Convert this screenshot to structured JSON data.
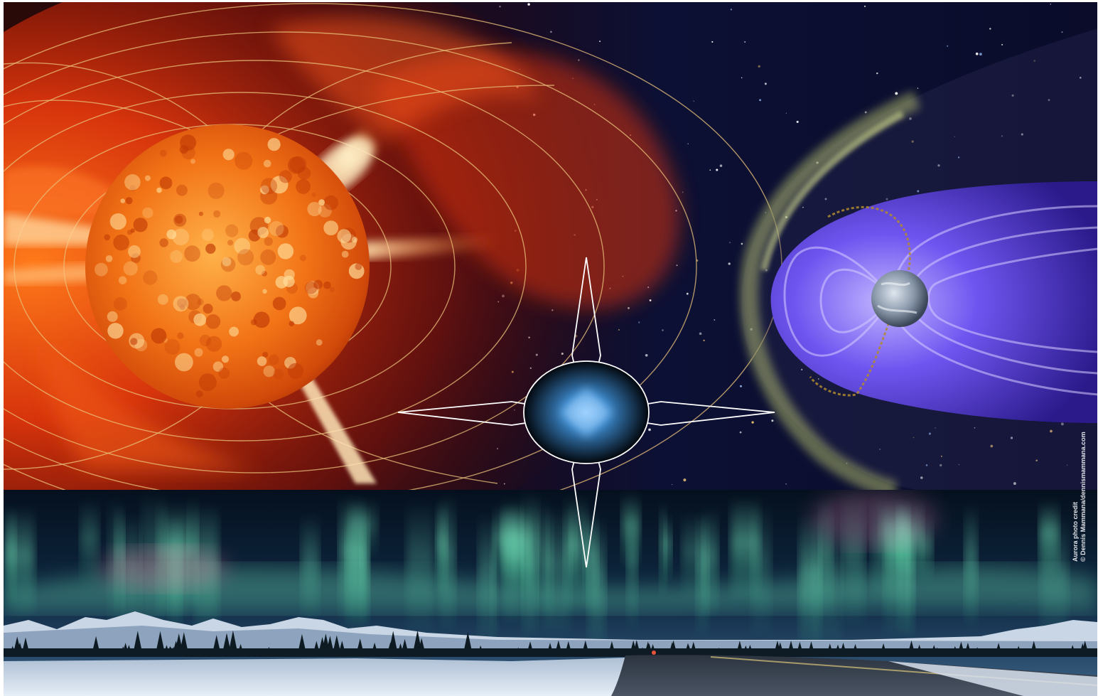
{
  "image": {
    "panels": [
      "solar-corona-panel",
      "magnetosphere-panel",
      "aurora-landscape-panel"
    ],
    "emblem": "four-point-star-compass",
    "colors": {
      "sun_core": "#f06a12",
      "corona_red": "#d4260a",
      "space_navy": "#0b0f2e",
      "magnetosphere_violet": "#5a40e0",
      "bow_shock_green": "#9aa95a",
      "aurora_green": "#66e6b4",
      "snow": "#d7e4f2"
    }
  },
  "credit": {
    "line1": "Aurora photo credit",
    "line2": "© Dennis Mammana/dennismammana.com"
  }
}
